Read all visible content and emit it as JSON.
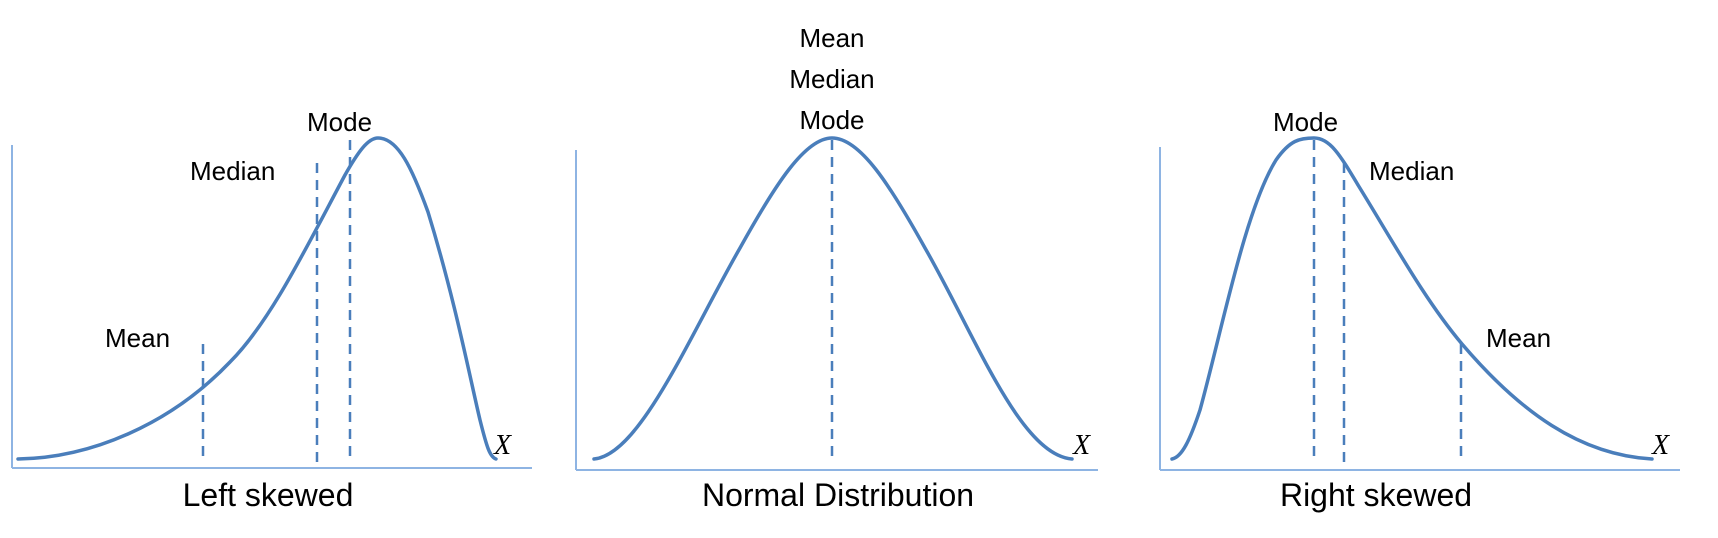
{
  "colors": {
    "curve": "#4a7ebb",
    "axis": "#8eb4e3"
  },
  "panels": [
    {
      "id": "left",
      "caption": "Left skewed",
      "axis_label": "X",
      "measures": [
        {
          "key": "mean",
          "label": "Mean"
        },
        {
          "key": "median",
          "label": "Median"
        },
        {
          "key": "mode",
          "label": "Mode"
        }
      ]
    },
    {
      "id": "normal",
      "caption": "Normal Distribution",
      "axis_label": "X",
      "stacked_labels": [
        "Mean",
        "Median",
        "Mode"
      ]
    },
    {
      "id": "right",
      "caption": "Right skewed",
      "axis_label": "X",
      "measures": [
        {
          "key": "mode",
          "label": "Mode"
        },
        {
          "key": "median",
          "label": "Median"
        },
        {
          "key": "mean",
          "label": "Mean"
        }
      ]
    }
  ]
}
